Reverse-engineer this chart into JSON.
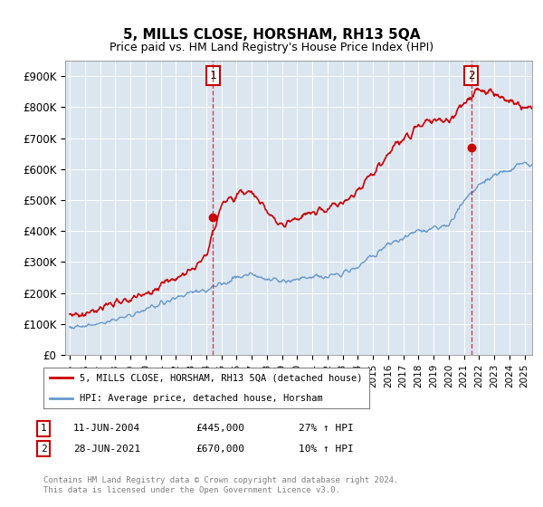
{
  "title": "5, MILLS CLOSE, HORSHAM, RH13 5QA",
  "subtitle": "Price paid vs. HM Land Registry's House Price Index (HPI)",
  "ylabel_ticks": [
    "£0",
    "£100K",
    "£200K",
    "£300K",
    "£400K",
    "£500K",
    "£600K",
    "£700K",
    "£800K",
    "£900K"
  ],
  "ytick_values": [
    0,
    100000,
    200000,
    300000,
    400000,
    500000,
    600000,
    700000,
    800000,
    900000
  ],
  "ylim": [
    0,
    950000
  ],
  "xlim_start": 1995.0,
  "xlim_end": 2025.5,
  "bg_color": "#dce6f1",
  "plot_bg": "#dce6f1",
  "red_color": "#cc0000",
  "blue_color": "#6699cc",
  "transaction1_x": 2004.44,
  "transaction1_y": 445000,
  "transaction2_x": 2021.48,
  "transaction2_y": 670000,
  "legend_label1": "5, MILLS CLOSE, HORSHAM, RH13 5QA (detached house)",
  "legend_label2": "HPI: Average price, detached house, Horsham",
  "table_row1": [
    "1",
    "11-JUN-2004",
    "£445,000",
    "27% ↑ HPI"
  ],
  "table_row2": [
    "2",
    "28-JUN-2021",
    "£670,000",
    "10% ↑ HPI"
  ],
  "footer": "Contains HM Land Registry data © Crown copyright and database right 2024.\nThis data is licensed under the Open Government Licence v3.0.",
  "years": [
    1995,
    1996,
    1997,
    1998,
    1999,
    2000,
    2001,
    2002,
    2003,
    2004,
    2005,
    2006,
    2007,
    2008,
    2009,
    2010,
    2011,
    2012,
    2013,
    2014,
    2015,
    2016,
    2017,
    2018,
    2019,
    2020,
    2021,
    2022,
    2023,
    2024,
    2025
  ],
  "hpi_values": [
    90000,
    92000,
    100000,
    115000,
    130000,
    148000,
    165000,
    185000,
    200000,
    210000,
    230000,
    250000,
    260000,
    245000,
    235000,
    245000,
    250000,
    255000,
    265000,
    285000,
    320000,
    355000,
    380000,
    400000,
    410000,
    420000,
    500000,
    550000,
    580000,
    600000,
    620000
  ],
  "red_values": [
    130000,
    135000,
    148000,
    165000,
    180000,
    200000,
    220000,
    250000,
    280000,
    320000,
    480000,
    520000,
    530000,
    460000,
    420000,
    440000,
    460000,
    470000,
    490000,
    530000,
    590000,
    650000,
    700000,
    740000,
    760000,
    750000,
    820000,
    860000,
    840000,
    820000,
    800000
  ]
}
